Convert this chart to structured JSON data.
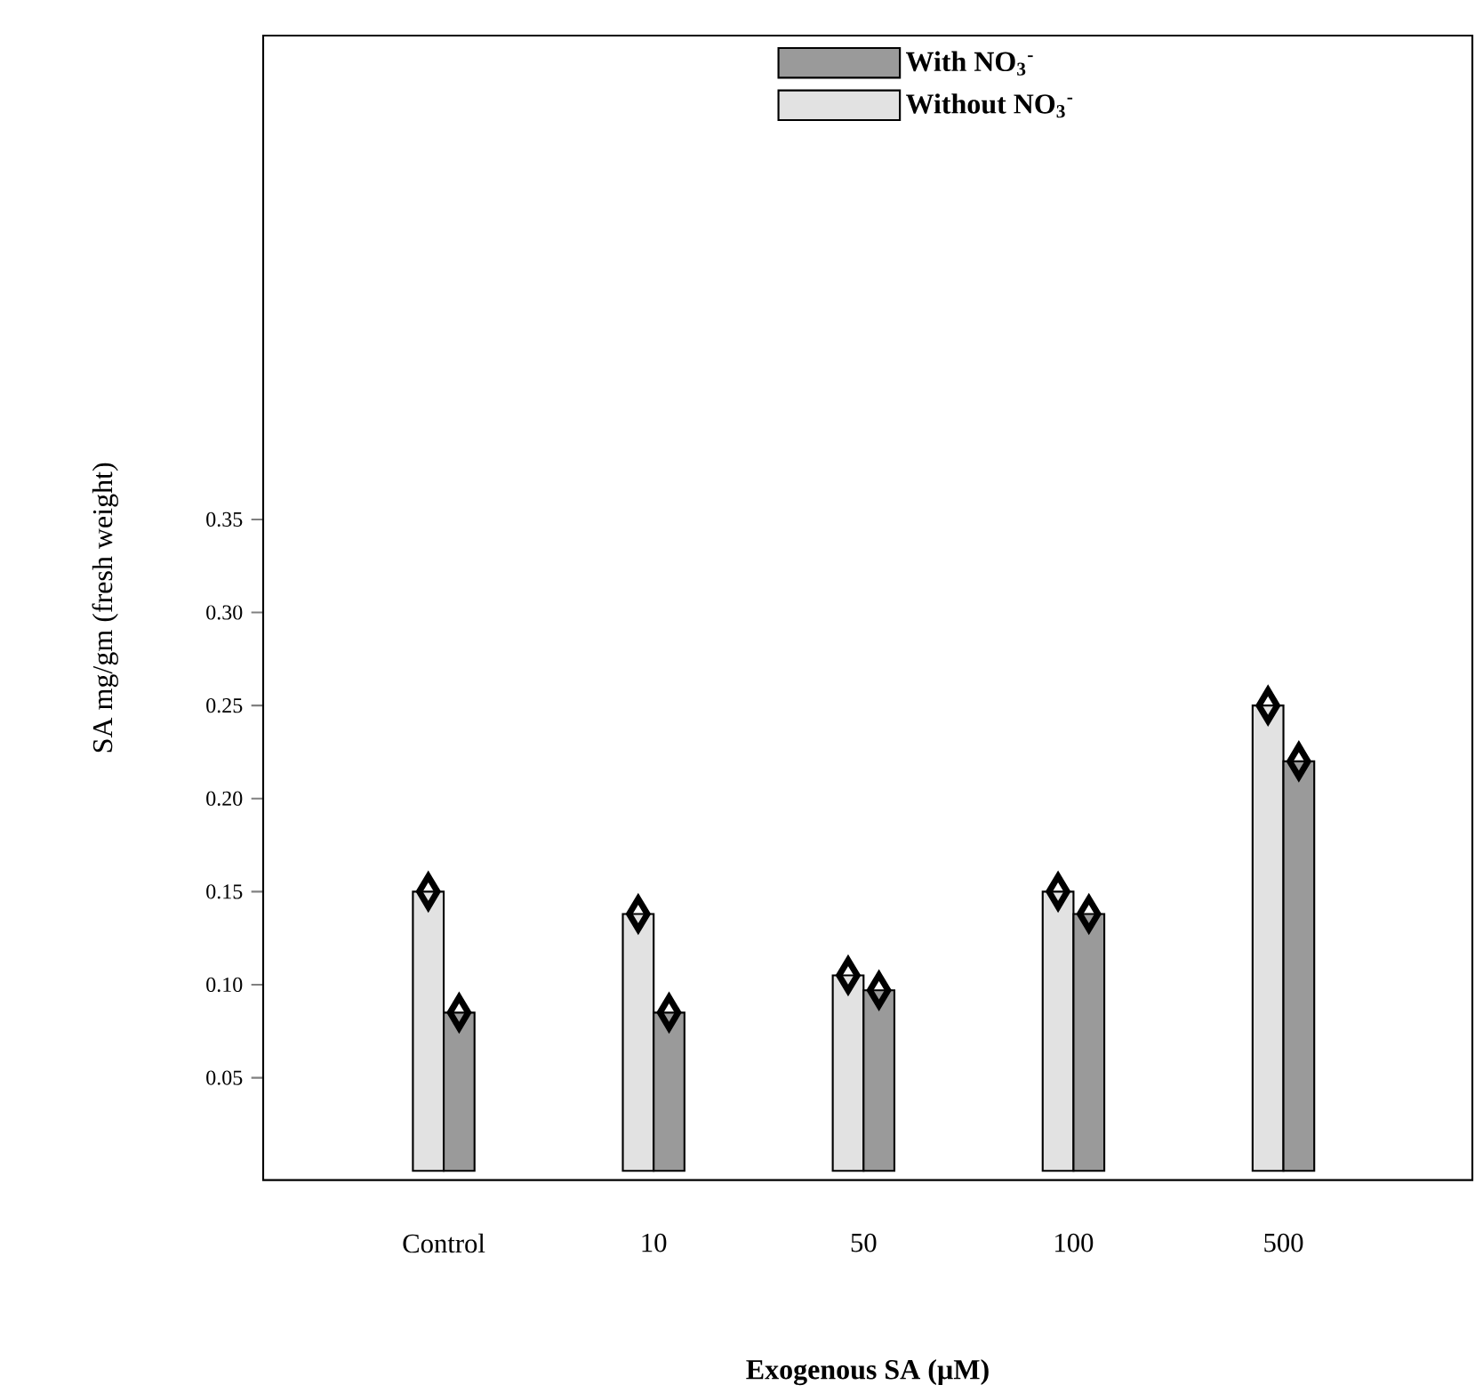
{
  "chart_data": {
    "type": "bar",
    "xlabel": "Exogenous SA (µM)",
    "ylabel": "SA mg/gm (fresh weight)",
    "categories": [
      "Control",
      "10",
      "50",
      "100",
      "500"
    ],
    "series": [
      {
        "name": "Without NO$_{3}$$^{-}$",
        "color": "#e2e2e2",
        "values": [
          0.15,
          0.138,
          0.105,
          0.15,
          0.25
        ]
      },
      {
        "name": "With NO$_{3}$$^{-}$",
        "color": "#9a9a9a",
        "values": [
          0.085,
          0.085,
          0.097,
          0.138,
          0.22
        ]
      },
      {
        "type": "scatter",
        "color": "#000000",
        "marker": "diamond",
        "x": [
          "Control",
          "10",
          "50",
          "100",
          "500"
        ],
        "values": [
          0.15,
          0.138,
          0.105,
          0.15,
          0.25
        ]
      },
      {
        "type": "scatter",
        "color": "#000000",
        "marker": "diamond",
        "x": [
          "Control",
          "10",
          "50",
          "100",
          "500"
        ],
        "values": [
          0.085,
          0.085,
          0.097,
          0.138,
          0.22
        ]
      }
    ],
    "ylim": [
      -0.005,
      0.61
    ],
    "yticks": [
      {
        "value": 0.05,
        "label": "0.05"
      },
      {
        "value": 0.1,
        "label": "0.10"
      },
      {
        "value": 0.15,
        "label": "0.15"
      },
      {
        "value": 0.2,
        "label": "0.20"
      },
      {
        "value": 0.25,
        "label": "0.25"
      },
      {
        "value": 0.3,
        "label": "0.30"
      },
      {
        "value": 0.35,
        "label": "0.35"
      }
    ],
    "legend": "top",
    "grid": false
  }
}
